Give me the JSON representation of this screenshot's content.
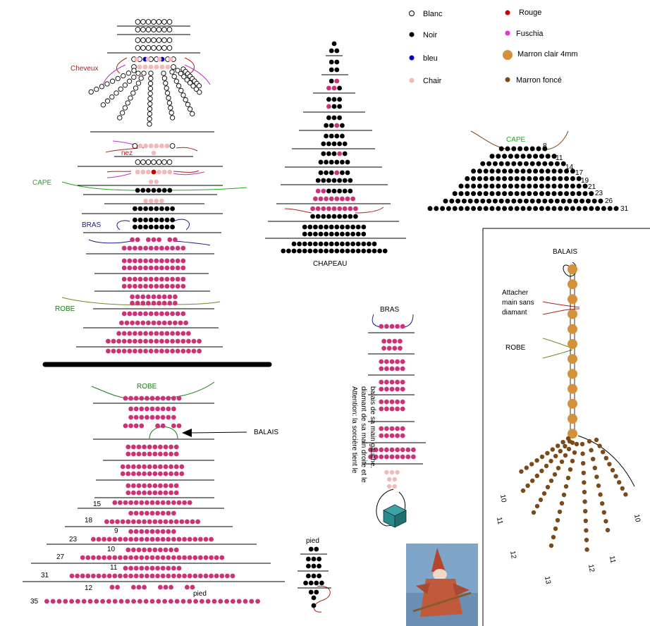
{
  "colors": {
    "blanc": "#ffffff",
    "noir": "#000000",
    "bleu": "#0000cc",
    "chair": "#f4b8b8",
    "rouge": "#cc0000",
    "fuschia": "#cc3377",
    "fuschia_legend": "#e030e0",
    "marron_clair": "#d4903a",
    "marron_fonce": "#7a4a1a",
    "cape_green": "#22aa22",
    "robe_green": "#3a8a3a",
    "teal": "#2a8a8a"
  },
  "legend": [
    {
      "key": "blanc",
      "label": "Blanc"
    },
    {
      "key": "noir",
      "label": "Noir"
    },
    {
      "key": "bleu",
      "label": "bleu"
    },
    {
      "key": "chair",
      "label": "Chair"
    },
    {
      "key": "rouge",
      "label": "Rouge"
    },
    {
      "key": "fuschia_legend",
      "label": "Fuschia"
    },
    {
      "key": "marron_clair",
      "label": "Marron clair 4mm"
    },
    {
      "key": "marron_fonce",
      "label": "Marron foncé"
    }
  ],
  "labels": {
    "cheveux": "Cheveux",
    "nez": "nez",
    "cape": "CAPE",
    "bras": "BRAS",
    "robe": "ROBE",
    "robe_bottom": "ROBE",
    "balais_pointer": "BALAIS",
    "chapeau": "CHAPEAU",
    "cape_right": "CAPE",
    "bras_small": "BRAS",
    "pied_small": "pied",
    "pied_bottom": "pied",
    "balais_panel": "BALAIS",
    "attacher": [
      "Attacher",
      "main sans",
      "diamant"
    ],
    "robe_panel": "ROBE",
    "attention": [
      "Attention: la sorcière tient le",
      "diamant de sa main droite et le",
      "balais de sa main gauche."
    ]
  },
  "cape_numbers": [
    "8",
    "11",
    "14",
    "17",
    "19",
    "21",
    "23",
    "26",
    "31"
  ],
  "skirt_numbers": [
    "15",
    "18",
    "23",
    "27",
    "31",
    "35"
  ],
  "skirt_inner_numbers": [
    "9",
    "10",
    "11",
    "12"
  ],
  "broom_numbers": [
    "10",
    "11",
    "12",
    "13",
    "12",
    "11",
    "10"
  ]
}
